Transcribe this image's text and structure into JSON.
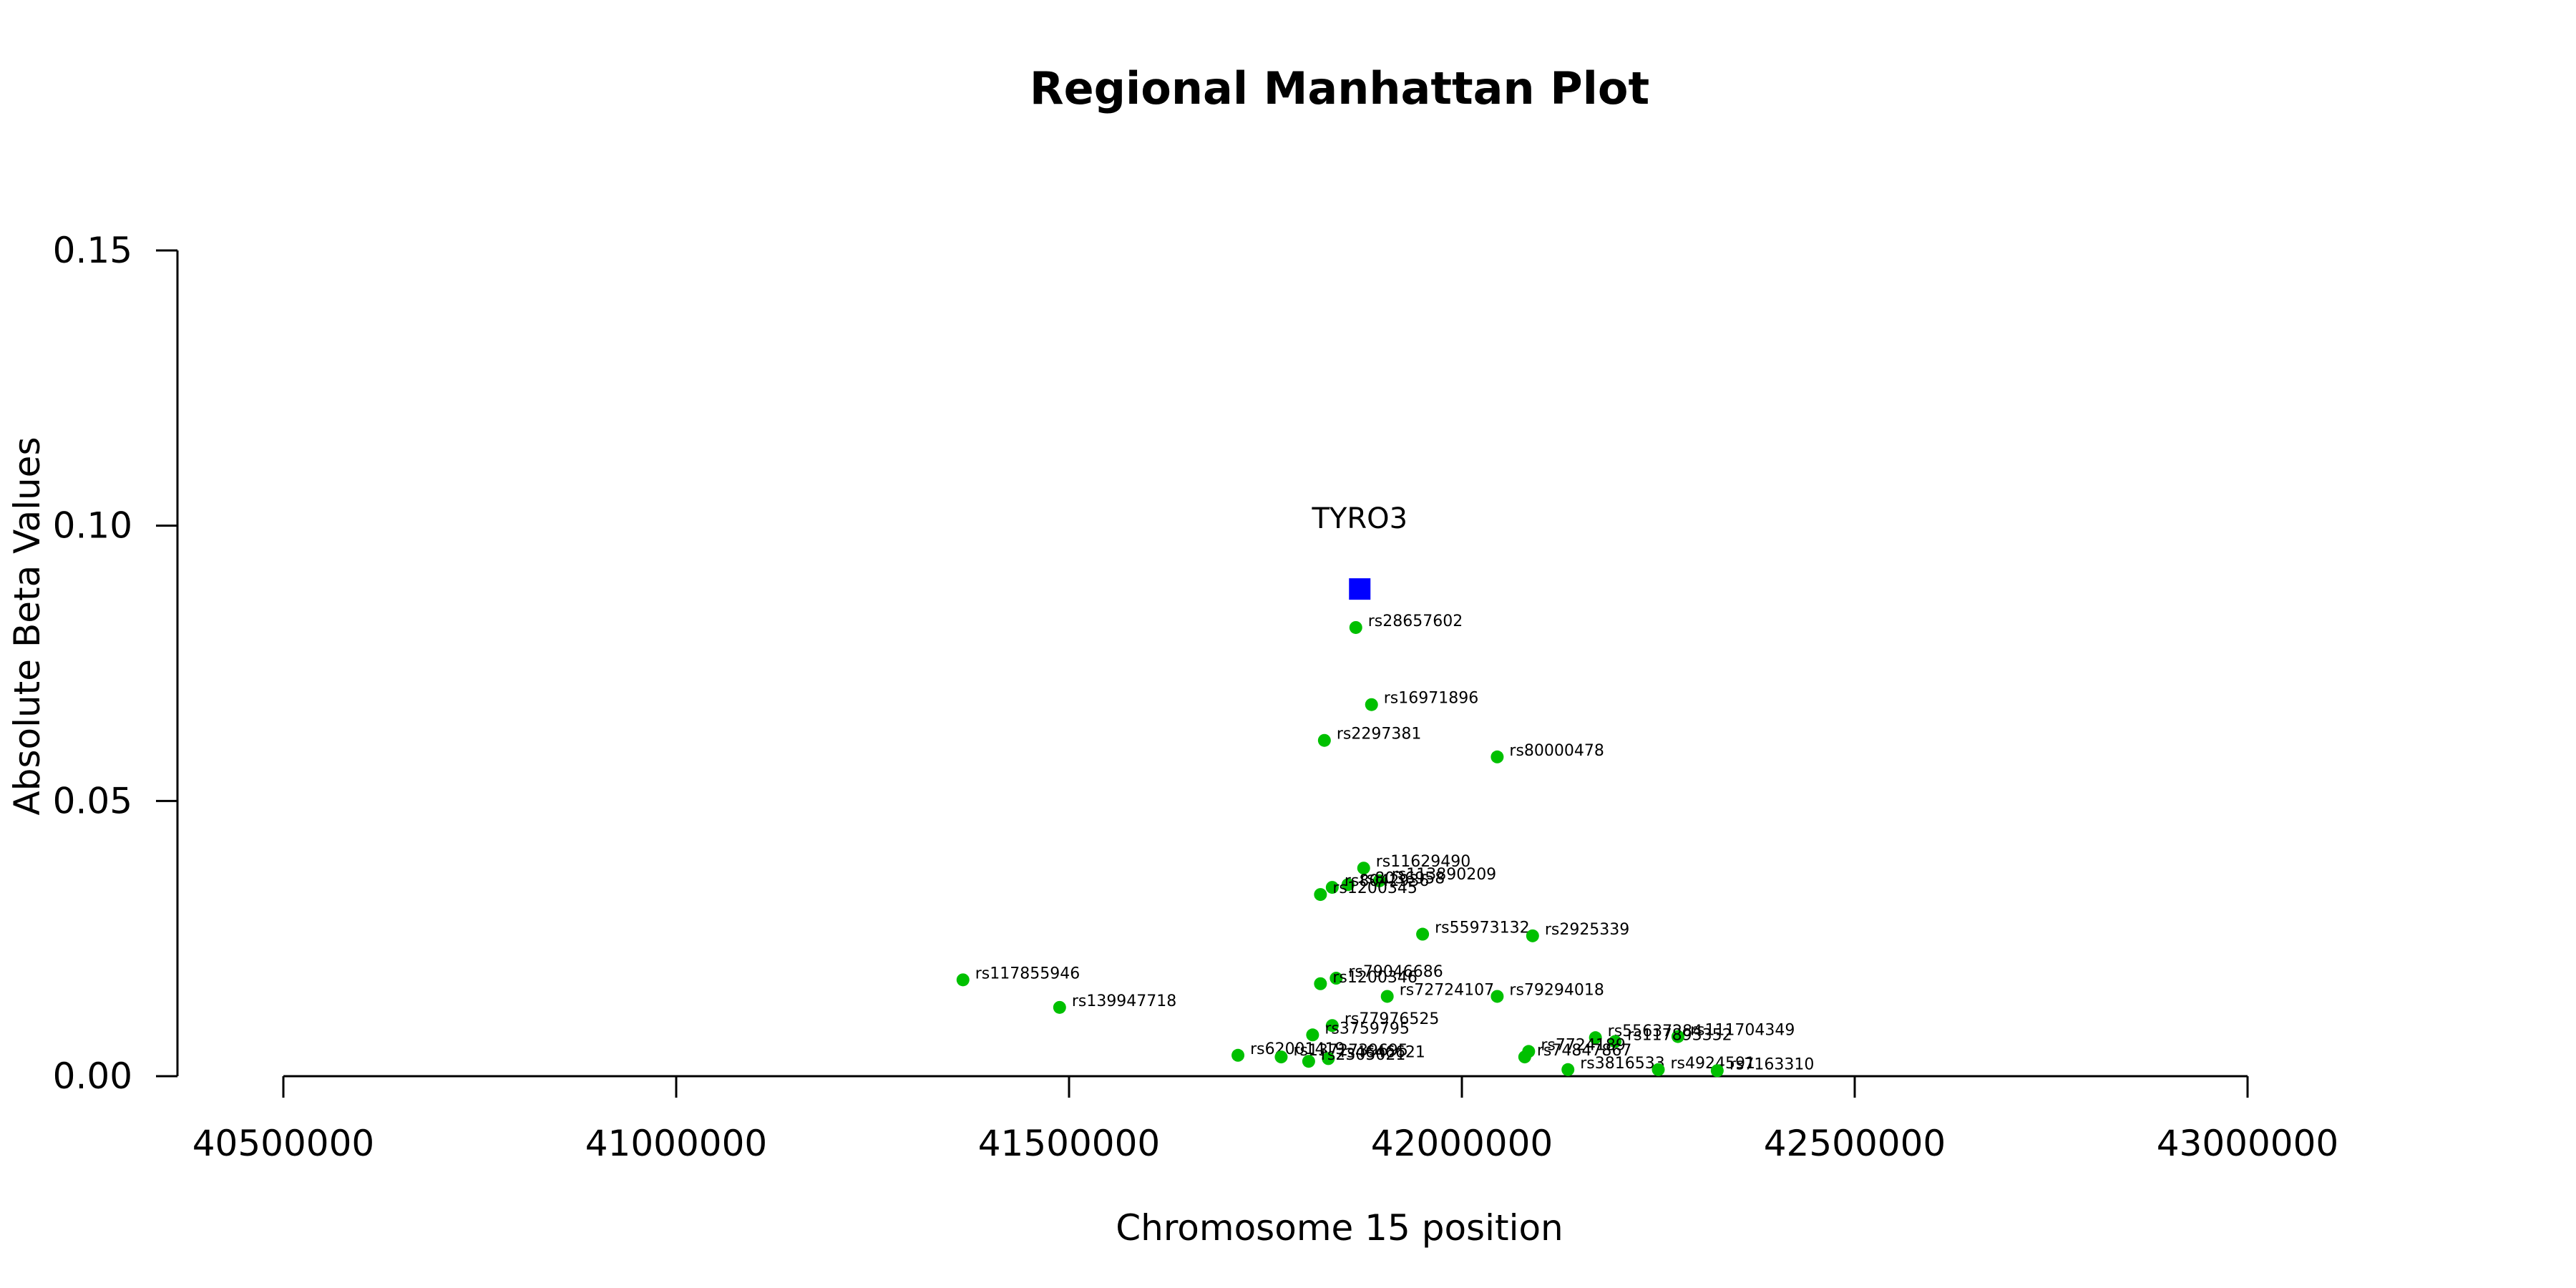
{
  "chart_data": {
    "type": "scatter",
    "title": "Regional Manhattan Plot",
    "xlabel": "Chromosome 15 position",
    "ylabel": "Absolute Beta Values",
    "xlim": [
      40500000,
      43000000
    ],
    "ylim": [
      0,
      0.15
    ],
    "x_ticks": [
      40500000,
      41000000,
      41500000,
      42000000,
      42500000,
      43000000
    ],
    "x_tick_labels": [
      "40500000",
      "41000000",
      "41500000",
      "42000000",
      "42500000",
      "43000000"
    ],
    "y_ticks": [
      0.0,
      0.05,
      0.1,
      0.15
    ],
    "y_tick_labels": [
      "0.00",
      "0.05",
      "0.10",
      "0.15"
    ],
    "gene": {
      "name": "TYRO3",
      "x": 41870000,
      "y": 0.0885,
      "color": "#0000ff",
      "marker": "square"
    },
    "point_color": "#00c000",
    "series": [
      {
        "points": [
          {
            "label": "rs28657602",
            "x": 41865000,
            "y": 0.0815
          },
          {
            "label": "rs16971896",
            "x": 41885000,
            "y": 0.0675
          },
          {
            "label": "rs2297381",
            "x": 41825000,
            "y": 0.061
          },
          {
            "label": "rs80000478",
            "x": 42045000,
            "y": 0.058
          },
          {
            "label": "rs11629490",
            "x": 41875000,
            "y": 0.0378
          },
          {
            "label": "rs113890209",
            "x": 41895000,
            "y": 0.0355
          },
          {
            "label": "rs8036958",
            "x": 41855000,
            "y": 0.0348
          },
          {
            "label": "rs8042936",
            "x": 41835000,
            "y": 0.0343
          },
          {
            "label": "rs1200345",
            "x": 41820000,
            "y": 0.033
          },
          {
            "label": "rs55973132",
            "x": 41950000,
            "y": 0.0258
          },
          {
            "label": "rs2925339",
            "x": 42090000,
            "y": 0.0255
          },
          {
            "label": "rs117855946",
            "x": 41365000,
            "y": 0.0175
          },
          {
            "label": "rs79046686",
            "x": 41840000,
            "y": 0.0178
          },
          {
            "label": "rs1200346",
            "x": 41820000,
            "y": 0.0168
          },
          {
            "label": "rs139947718",
            "x": 41488000,
            "y": 0.0125
          },
          {
            "label": "rs72724107",
            "x": 41905000,
            "y": 0.0145
          },
          {
            "label": "rs79294018",
            "x": 42045000,
            "y": 0.0145
          },
          {
            "label": "rs77976525",
            "x": 41835000,
            "y": 0.0092
          },
          {
            "label": "rs3759795",
            "x": 41810000,
            "y": 0.0075
          },
          {
            "label": "rs55637284",
            "x": 42170000,
            "y": 0.007
          },
          {
            "label": "rs111704349",
            "x": 42275000,
            "y": 0.0072
          },
          {
            "label": "rs117893352",
            "x": 42195000,
            "y": 0.0063
          },
          {
            "label": "rs7724189",
            "x": 42085000,
            "y": 0.0045
          },
          {
            "label": "rs74847867",
            "x": 42080000,
            "y": 0.0035
          },
          {
            "label": "rs62001419",
            "x": 41715000,
            "y": 0.0038
          },
          {
            "label": "rs1372739695",
            "x": 41770000,
            "y": 0.0035
          },
          {
            "label": "rs4646621",
            "x": 41830000,
            "y": 0.0032
          },
          {
            "label": "rs2305021",
            "x": 41805000,
            "y": 0.0027
          },
          {
            "label": "rs3816533",
            "x": 42135000,
            "y": 0.0012
          },
          {
            "label": "rs4924591",
            "x": 42250000,
            "y": 0.0012
          },
          {
            "label": "rs7163310",
            "x": 42325000,
            "y": 0.001
          }
        ]
      }
    ]
  }
}
